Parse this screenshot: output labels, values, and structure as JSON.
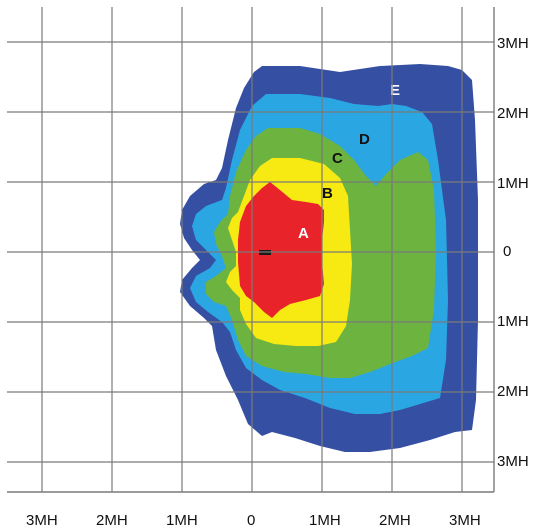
{
  "colors": {
    "zone_a": "#e8242a",
    "zone_b": "#f7ea13",
    "zone_c": "#6db33f",
    "zone_d": "#2aa6e3",
    "zone_e": "#3550a3",
    "grid": "#7a7a7a",
    "marker": "#1a1a1a"
  },
  "zones": [
    {
      "id": "zone_a",
      "label": "A"
    },
    {
      "id": "zone_b",
      "label": "B"
    },
    {
      "id": "zone_c",
      "label": "C"
    },
    {
      "id": "zone_d",
      "label": "D"
    },
    {
      "id": "zone_e",
      "label": "E"
    }
  ],
  "x_axis": {
    "tick_labels": [
      "3MH",
      "2MH",
      "1MH",
      "0",
      "1MH",
      "2MH",
      "3MH"
    ]
  },
  "y_axis": {
    "tick_labels": [
      "3MH",
      "2MH",
      "1MH",
      "0",
      "1MH",
      "2MH",
      "3MH"
    ]
  },
  "marker_icon": "emitter-marker-icon"
}
